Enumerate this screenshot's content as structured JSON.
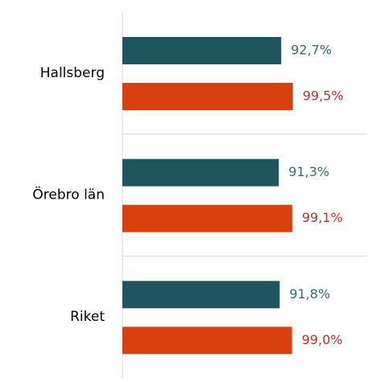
{
  "chart_data": {
    "type": "bar",
    "orientation": "horizontal",
    "categories": [
      "Hallsberg",
      "Örebro län",
      "Riket"
    ],
    "series": [
      {
        "color": "#1f555e",
        "label_color": "#3a6a72",
        "values": [
          92.7,
          91.3,
          91.8
        ],
        "value_labels": [
          "92,7%",
          "91,3%",
          "91,8%"
        ]
      },
      {
        "color": "#d9400f",
        "label_color": "#c0302a",
        "values": [
          99.5,
          99.1,
          99.0
        ],
        "value_labels": [
          "99,5%",
          "99,1%",
          "99,0%"
        ]
      }
    ],
    "xlim": [
      0,
      141
    ]
  }
}
